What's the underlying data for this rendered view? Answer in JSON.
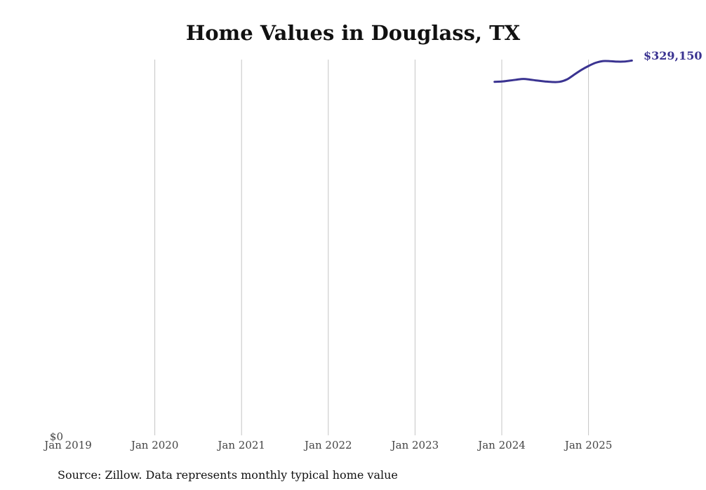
{
  "chart_data": {
    "type": "line",
    "title": "Home Values in Douglass, TX",
    "xlabel": "",
    "ylabel": "",
    "x_ticks": [
      "Jan 2019",
      "Jan 2020",
      "Jan 2021",
      "Jan 2022",
      "Jan 2023",
      "Jan 2024",
      "Jan 2025"
    ],
    "y_tick_label": "$0",
    "ylim": [
      0,
      330000
    ],
    "x_range": [
      "2019-01",
      "2025-07"
    ],
    "series": [
      {
        "name": "Typical home value",
        "color": "#3a3391",
        "x": [
          "2023-12",
          "2024-01",
          "2024-02",
          "2024-03",
          "2024-04",
          "2024-05",
          "2024-06",
          "2024-07",
          "2024-08",
          "2024-09",
          "2024-10",
          "2024-11",
          "2024-12",
          "2025-01",
          "2025-02",
          "2025-03",
          "2025-04",
          "2025-05",
          "2025-06",
          "2025-07"
        ],
        "values": [
          310500,
          310700,
          311500,
          312300,
          313000,
          312300,
          311500,
          310800,
          310300,
          310500,
          312500,
          316700,
          320900,
          324400,
          327200,
          328700,
          328600,
          328200,
          328300,
          329150
        ]
      }
    ],
    "end_label": "$329,150",
    "grid": "vertical"
  },
  "source_note": "Source: Zillow. Data represents monthly typical home value"
}
